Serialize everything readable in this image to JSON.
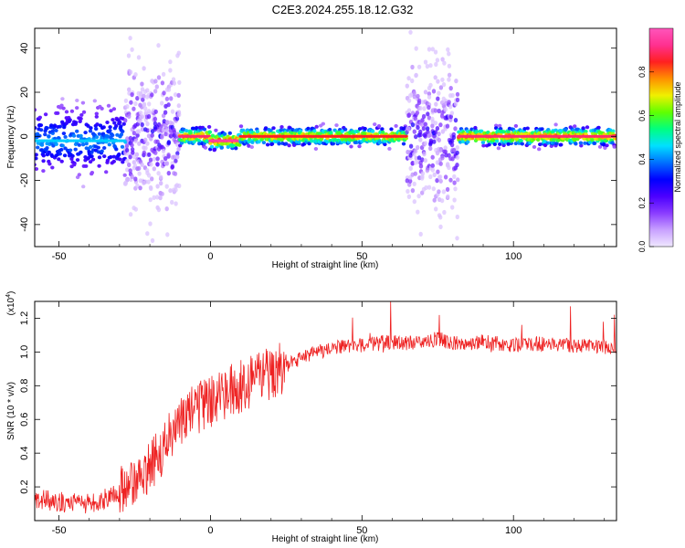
{
  "chart_data": [
    {
      "type": "heatmap",
      "title": "C2E3.2024.255.18.12.G32",
      "xlabel": "Height of straight line (km)",
      "ylabel": "Frequency (Hz)",
      "xlim": [
        -58,
        134
      ],
      "ylim": [
        -50,
        49
      ],
      "x_ticks": [
        -50,
        0,
        50,
        100
      ],
      "y_ticks": [
        -40,
        -20,
        0,
        20,
        40
      ],
      "grid": false,
      "colorbar": {
        "label": "Normalized spectral amplitude",
        "range": [
          0,
          1
        ],
        "ticks": [
          "0.0",
          "0.2",
          "0.4",
          "0.6",
          "0.8"
        ],
        "colors": [
          "#f0e8ff",
          "#c8a0ff",
          "#8a3cff",
          "#4b00ff",
          "#0000ff",
          "#0070ff",
          "#00e0ff",
          "#00ff80",
          "#60ff00",
          "#f0f000",
          "#ff9000",
          "#ff2020",
          "#ff3090",
          "#ff55bb"
        ]
      },
      "segments": [
        {
          "x_range": [
            -58,
            -28
          ],
          "center_freq": -2,
          "spread": 8,
          "peak": 0.45
        },
        {
          "x_range": [
            -28,
            -10
          ],
          "center_freq": 0,
          "spread": 40,
          "peak": 0.25
        },
        {
          "x_range": [
            -10,
            0
          ],
          "center_freq": 0,
          "spread": 2,
          "peak": 0.9
        },
        {
          "x_range": [
            0,
            10
          ],
          "center_freq": -2,
          "spread": 2,
          "peak": 0.95
        },
        {
          "x_range": [
            10,
            65
          ],
          "center_freq": 0,
          "spread": 2,
          "peak": 0.85
        },
        {
          "x_range": [
            65,
            82
          ],
          "center_freq": 0,
          "spread": 40,
          "peak": 0.25
        },
        {
          "x_range": [
            82,
            134
          ],
          "center_freq": 0,
          "spread": 2,
          "peak": 0.9
        }
      ]
    },
    {
      "type": "line",
      "xlabel": "Height of straight line (km)",
      "ylabel": "SNR (10 * v/v)",
      "y_multiplier": "(x10",
      "y_multiplier_exp": "4",
      "y_multiplier_close": ")",
      "xlim": [
        -58,
        134
      ],
      "ylim": [
        0.0,
        1.3
      ],
      "x_ticks": [
        -50,
        0,
        50,
        100
      ],
      "y_ticks": [
        "0.2",
        "0.4",
        "0.6",
        "0.8",
        "1.0",
        "1.2"
      ],
      "grid": false,
      "series": [
        {
          "color": "#ee2222",
          "x": [
            -58,
            -50,
            -40,
            -30,
            -20,
            -15,
            -10,
            -5,
            0,
            5,
            10,
            15,
            20,
            25,
            30,
            35,
            40,
            50,
            60,
            70,
            75,
            80,
            90,
            100,
            110,
            120,
            134
          ],
          "y": [
            0.13,
            0.11,
            0.1,
            0.16,
            0.32,
            0.45,
            0.58,
            0.66,
            0.7,
            0.75,
            0.8,
            0.84,
            0.88,
            0.92,
            0.96,
            1.0,
            1.02,
            1.04,
            1.06,
            1.05,
            1.08,
            1.05,
            1.06,
            1.04,
            1.05,
            1.04,
            1.03
          ]
        }
      ]
    }
  ]
}
